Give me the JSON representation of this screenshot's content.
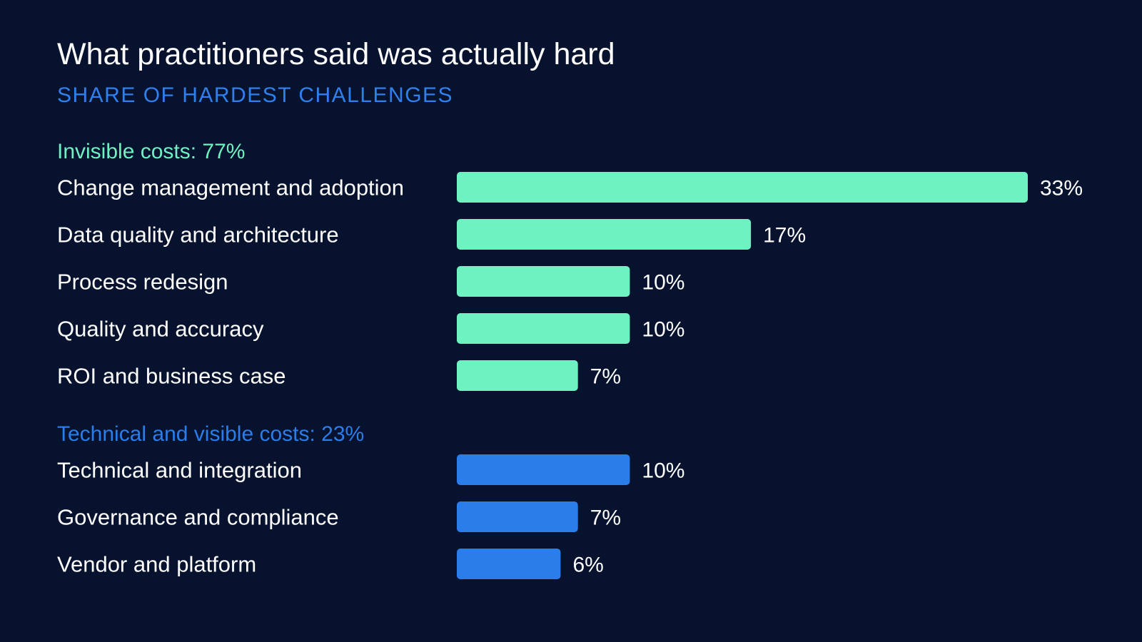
{
  "header": {
    "title": "What practitioners said was actually hard",
    "subtitle": "SHARE OF HARDEST CHALLENGES"
  },
  "chart_data": {
    "type": "bar",
    "orientation": "horizontal",
    "title": "What practitioners said was actually hard",
    "subtitle": "SHARE OF HARDEST CHALLENGES",
    "xlim": [
      0,
      33
    ],
    "grid": false,
    "groups": [
      {
        "label": "Invisible costs: 77%",
        "color": "#6ef2c2",
        "items": [
          {
            "category": "Change management and adoption",
            "value": 33,
            "label": "33%"
          },
          {
            "category": "Data quality and architecture",
            "value": 17,
            "label": "17%"
          },
          {
            "category": "Process redesign",
            "value": 10,
            "label": "10%"
          },
          {
            "category": "Quality and accuracy",
            "value": 10,
            "label": "10%"
          },
          {
            "category": "ROI and business case",
            "value": 7,
            "label": "7%"
          }
        ]
      },
      {
        "label": "Technical and visible costs: 23%",
        "color": "#2b7de9",
        "items": [
          {
            "category": "Technical and integration",
            "value": 10,
            "label": "10%"
          },
          {
            "category": "Governance and compliance",
            "value": 7,
            "label": "7%"
          },
          {
            "category": "Vendor and platform",
            "value": 6,
            "label": "6%"
          }
        ]
      }
    ]
  }
}
